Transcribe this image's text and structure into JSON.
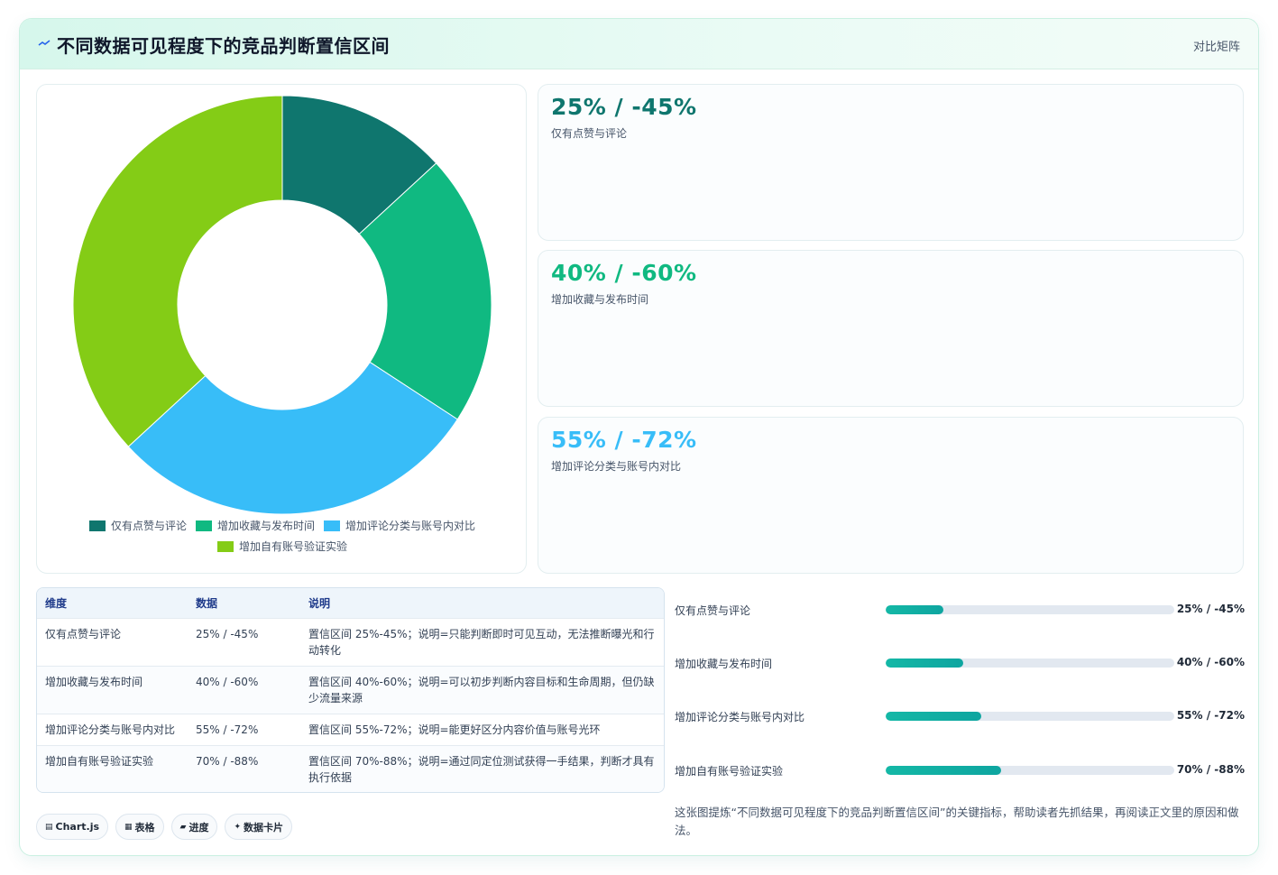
{
  "header": {
    "title": "不同数据可见程度下的竞品判断置信区间",
    "tag": "对比矩阵",
    "icon": "zigzag-icon",
    "accent": "#2563eb"
  },
  "chart_data": {
    "type": "pie",
    "donut": true,
    "categories": [
      "仅有点赞与评论",
      "增加收藏与发布时间",
      "增加评论分类与账号内对比",
      "增加自有账号验证实验"
    ],
    "values": [
      25,
      40,
      55,
      70
    ],
    "colors": [
      "#0f766e",
      "#10b981",
      "#38bdf8",
      "#84cc16"
    ],
    "legend": "bottom"
  },
  "kpis": [
    {
      "value": "25% / -45%",
      "label": "仅有点赞与评论",
      "color": "#0f766e"
    },
    {
      "value": "40% / -60%",
      "label": "增加收藏与发布时间",
      "color": "#10b981"
    },
    {
      "value": "55% / -72%",
      "label": "增加评论分类与账号内对比",
      "color": "#38bdf8"
    }
  ],
  "table": {
    "headers": [
      "维度",
      "数据",
      "说明"
    ],
    "rows": [
      [
        "仅有点赞与评论",
        "25% / -45%",
        "置信区间 25%-45%；说明=只能判断即时可见互动，无法推断曝光和行动转化"
      ],
      [
        "增加收藏与发布时间",
        "40% / -60%",
        "置信区间 40%-60%；说明=可以初步判断内容目标和生命周期，但仍缺少流量来源"
      ],
      [
        "增加评论分类与账号内对比",
        "55% / -72%",
        "置信区间 55%-72%；说明=能更好区分内容价值与账号光环"
      ],
      [
        "增加自有账号验证实验",
        "70% / -88%",
        "置信区间 70%-88%；说明=通过同定位测试获得一手结果，判断才具有执行依据"
      ]
    ]
  },
  "progress": [
    {
      "label": "仅有点赞与评论",
      "value_text": "25% / -45%",
      "fraction": 0.2
    },
    {
      "label": "增加收藏与发布时间",
      "value_text": "40% / -60%",
      "fraction": 0.27
    },
    {
      "label": "增加评论分类与账号内对比",
      "value_text": "55% / -72%",
      "fraction": 0.33
    },
    {
      "label": "增加自有账号验证实验",
      "value_text": "70% / -88%",
      "fraction": 0.4
    }
  ],
  "note": "这张图提炼“不同数据可见程度下的竞品判断置信区间”的关键指标，帮助读者先抓结果，再阅读正文里的原因和做法。",
  "chips": [
    {
      "icon": "▤",
      "label": "Chart.js"
    },
    {
      "icon": "▦",
      "label": "表格"
    },
    {
      "icon": "▰",
      "label": "进度"
    },
    {
      "icon": "✦",
      "label": "数据卡片"
    }
  ]
}
